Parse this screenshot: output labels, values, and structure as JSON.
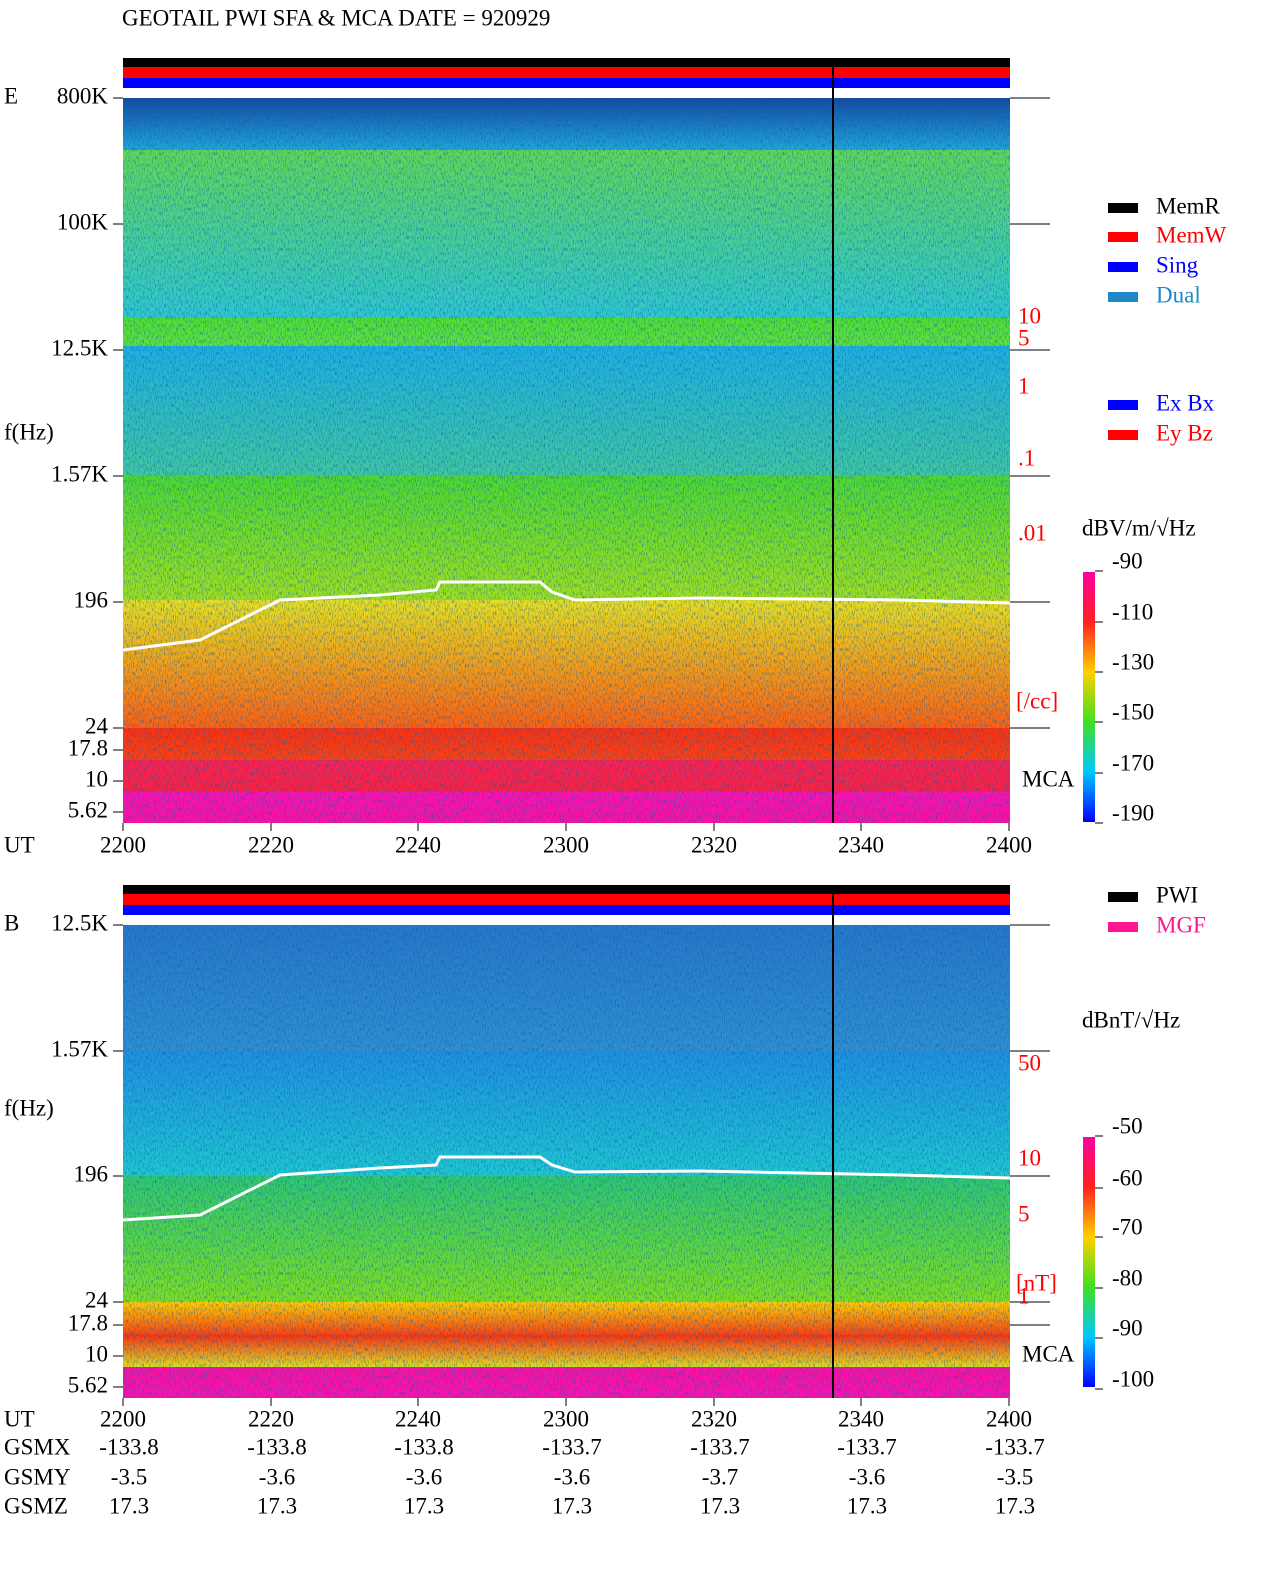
{
  "title": "GEOTAIL  PWI SFA & MCA   DATE = 920929",
  "panels": [
    {
      "label": "E",
      "axis_label": "f(Hz)",
      "yticks": [
        "800K",
        "100K",
        "12.5K",
        "1.57K",
        "196",
        "24",
        "17.8",
        "10",
        "5.62"
      ],
      "right_scale": [
        "10",
        "5",
        "1",
        ".1",
        ".01"
      ],
      "right_unit": "[/cc]",
      "mca": "MCA",
      "legend": [
        {
          "name": "MemR",
          "color": "#000000"
        },
        {
          "name": "MemW",
          "color": "#ff0000"
        },
        {
          "name": "Sing",
          "color": "#0000ff"
        },
        {
          "name": "Dual",
          "color": "#1e88c8"
        }
      ],
      "legend2": [
        {
          "name": "Ex Bx",
          "color": "#0000ff"
        },
        {
          "name": "Ey Bz",
          "color": "#ff0000"
        }
      ],
      "colorbar": {
        "unit": "dBV/m/√Hz",
        "ticks": [
          -90,
          -110,
          -130,
          -150,
          -170,
          -190
        ]
      },
      "time_label": "UT",
      "time_ticks": [
        2200,
        2220,
        2240,
        2300,
        2320,
        2340,
        2400
      ]
    },
    {
      "label": "B",
      "axis_label": "f(Hz)",
      "yticks": [
        "12.5K",
        "1.57K",
        "196",
        "24",
        "17.8",
        "10",
        "5.62"
      ],
      "right_scale": [
        "50",
        "10",
        "5",
        "1"
      ],
      "right_unit": "[nT]",
      "mca": "MCA",
      "legend": [
        {
          "name": "PWI",
          "color": "#000000"
        },
        {
          "name": "MGF",
          "color": "#ff1493"
        }
      ],
      "colorbar": {
        "unit": "dBnT/√Hz",
        "ticks": [
          -50,
          -60,
          -70,
          -80,
          -90,
          -100
        ]
      },
      "time_label": "UT",
      "time_ticks": [
        2200,
        2220,
        2240,
        2300,
        2320,
        2340,
        2400
      ]
    }
  ],
  "orbit": [
    {
      "name": "GSMX",
      "values": [
        -133.8,
        -133.8,
        -133.8,
        -133.7,
        -133.7,
        -133.7,
        -133.7
      ]
    },
    {
      "name": "GSMY",
      "values": [
        -3.5,
        -3.6,
        -3.6,
        -3.6,
        -3.7,
        -3.6,
        -3.5
      ]
    },
    {
      "name": "GSMZ",
      "values": [
        17.3,
        17.3,
        17.3,
        17.3,
        17.3,
        17.3,
        17.3
      ]
    }
  ]
}
